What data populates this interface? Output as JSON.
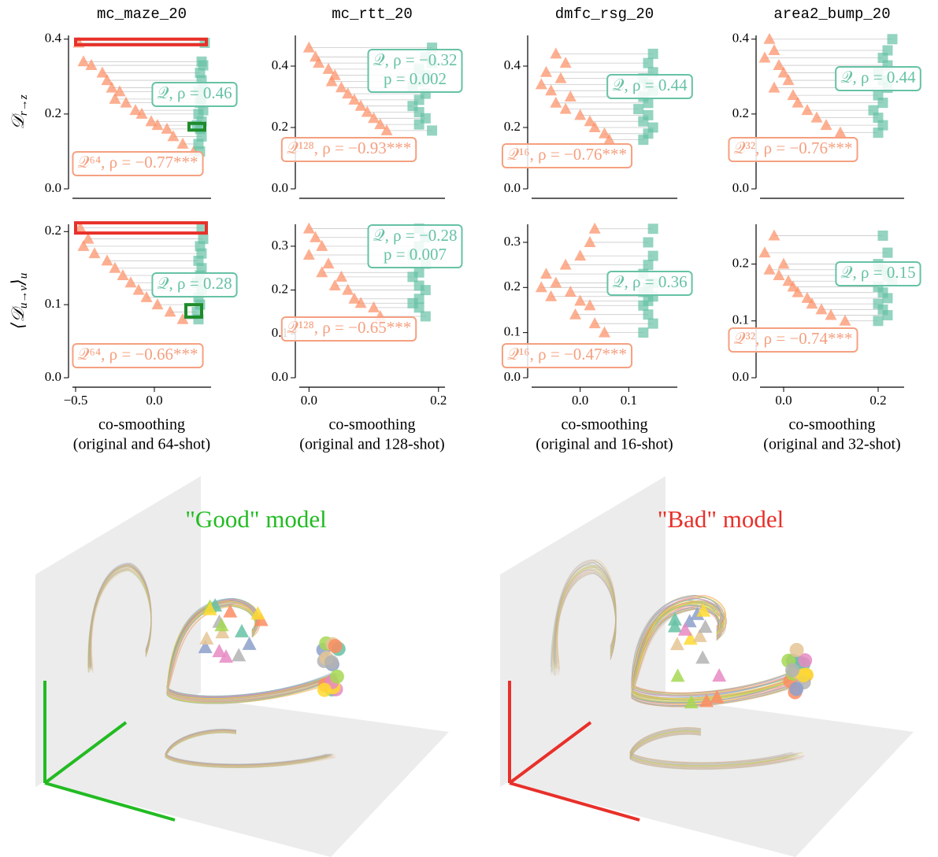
{
  "chart_data": [
    {
      "type": "scatter",
      "title": "mc_maze_20",
      "ylabel": [
        {
          "text": "𝒟"
        },
        {
          "text": "r→z",
          "sub": true
        }
      ],
      "xlim": [
        -0.52,
        0.36
      ],
      "ylim": [
        0,
        0.41
      ],
      "yticks": [
        {
          "value": 0,
          "label": "0.0"
        },
        0.2,
        0.4
      ],
      "series": [
        {
          "marker": "triangle",
          "color": "#fc8d62",
          "x": [
            -0.48,
            -0.45,
            -0.4,
            -0.33,
            -0.3,
            -0.27,
            -0.22,
            -0.25,
            -0.18,
            -0.12,
            -0.08,
            -0.02,
            0.02,
            0.08,
            0.12,
            0.18,
            0.25
          ],
          "values": [
            0.39,
            0.34,
            0.33,
            0.31,
            0.29,
            0.27,
            0.26,
            0.24,
            0.23,
            0.21,
            0.2,
            0.18,
            0.17,
            0.16,
            0.14,
            0.12,
            0.1
          ]
        },
        {
          "marker": "square",
          "color": "#66c2a5",
          "x": [
            0.32,
            0.3,
            0.31,
            0.29,
            0.3,
            0.31,
            0.28,
            0.3,
            0.29,
            0.31,
            0.28,
            0.3,
            0.27,
            0.29,
            0.3,
            0.28,
            0.29
          ],
          "values": [
            0.39,
            0.34,
            0.33,
            0.31,
            0.29,
            0.27,
            0.26,
            0.24,
            0.23,
            0.21,
            0.2,
            0.18,
            0.17,
            0.16,
            0.14,
            0.12,
            0.1
          ]
        }
      ],
      "highlights": [
        {
          "xlim": [
            -0.5,
            0.33
          ],
          "ylim": [
            0.385,
            0.4
          ],
          "color": "#e8302a"
        },
        {
          "xlim": [
            0.22,
            0.32
          ],
          "ylim": [
            0.157,
            0.175
          ],
          "color": "#1e8c2a"
        }
      ],
      "annotations": [
        {
          "lines": [
            "𝒬, ρ = 0.46"
          ],
          "color": "#66c2a5"
        },
        {
          "lines": [
            "𝒬⁶⁴, ρ = −0.77***"
          ],
          "color": "#f5a080"
        }
      ]
    },
    {
      "type": "scatter",
      "title": "mc_rtt_20",
      "xlim": [
        -0.015,
        0.21
      ],
      "ylim": [
        0,
        0.5
      ],
      "yticks": [
        {
          "value": 0,
          "label": "0.0"
        },
        0.2,
        0.4
      ],
      "series": [
        {
          "marker": "triangle",
          "color": "#fc8d62",
          "x": [
            0.0,
            0.01,
            0.015,
            0.03,
            0.04,
            0.035,
            0.05,
            0.06,
            0.07,
            0.08,
            0.09,
            0.1,
            0.11,
            0.12
          ],
          "values": [
            0.46,
            0.43,
            0.41,
            0.39,
            0.37,
            0.35,
            0.33,
            0.31,
            0.29,
            0.27,
            0.25,
            0.23,
            0.21,
            0.19
          ]
        },
        {
          "marker": "square",
          "color": "#66c2a5",
          "x": [
            0.19,
            0.18,
            0.19,
            0.17,
            0.18,
            0.17,
            0.16,
            0.18,
            0.17,
            0.16,
            0.17,
            0.18,
            0.17,
            0.19
          ],
          "values": [
            0.46,
            0.43,
            0.41,
            0.39,
            0.37,
            0.35,
            0.33,
            0.31,
            0.29,
            0.27,
            0.25,
            0.23,
            0.21,
            0.19
          ]
        }
      ],
      "annotations": [
        {
          "lines": [
            "𝒬, ρ = −0.32",
            "p = 0.002"
          ],
          "color": "#66c2a5"
        },
        {
          "lines": [
            "𝒬¹²⁸, ρ = −0.93***"
          ],
          "color": "#f5a080"
        }
      ]
    },
    {
      "type": "scatter",
      "title": "dmfc_rsg_20",
      "xlim": [
        -0.1,
        0.2
      ],
      "ylim": [
        0,
        0.5
      ],
      "yticks": [
        {
          "value": 0,
          "label": "0.0"
        },
        0.2,
        0.4
      ],
      "series": [
        {
          "marker": "triangle",
          "color": "#fc8d62",
          "x": [
            -0.05,
            -0.03,
            -0.07,
            -0.04,
            -0.08,
            -0.06,
            -0.02,
            -0.05,
            -0.03,
            0.0,
            0.02,
            0.03,
            0.05,
            0.06
          ],
          "values": [
            0.44,
            0.41,
            0.38,
            0.36,
            0.34,
            0.32,
            0.3,
            0.28,
            0.26,
            0.24,
            0.22,
            0.2,
            0.18,
            0.16
          ]
        },
        {
          "marker": "square",
          "color": "#66c2a5",
          "x": [
            0.15,
            0.14,
            0.15,
            0.13,
            0.14,
            0.15,
            0.13,
            0.14,
            0.12,
            0.14,
            0.13,
            0.15,
            0.14,
            0.13
          ],
          "values": [
            0.44,
            0.41,
            0.38,
            0.36,
            0.34,
            0.32,
            0.3,
            0.28,
            0.26,
            0.24,
            0.22,
            0.2,
            0.18,
            0.16
          ]
        }
      ],
      "annotations": [
        {
          "lines": [
            "𝒬, ρ = 0.44"
          ],
          "color": "#66c2a5"
        },
        {
          "lines": [
            "𝒬¹⁶, ρ = −0.76***"
          ],
          "color": "#f5a080"
        }
      ]
    },
    {
      "type": "scatter",
      "title": "area2_bump_20",
      "xlim": [
        -0.05,
        0.255
      ],
      "ylim": [
        0,
        0.41
      ],
      "yticks": [
        {
          "value": 0,
          "label": "0.0"
        },
        0.2,
        0.4
      ],
      "series": [
        {
          "marker": "triangle",
          "color": "#fc8d62",
          "x": [
            -0.03,
            -0.02,
            -0.04,
            -0.01,
            0.0,
            0.01,
            -0.02,
            0.02,
            0.03,
            0.05,
            0.07,
            0.09,
            0.12
          ],
          "values": [
            0.4,
            0.37,
            0.35,
            0.33,
            0.31,
            0.29,
            0.27,
            0.25,
            0.23,
            0.21,
            0.19,
            0.17,
            0.15
          ]
        },
        {
          "marker": "square",
          "color": "#66c2a5",
          "x": [
            0.23,
            0.22,
            0.21,
            0.22,
            0.2,
            0.21,
            0.22,
            0.2,
            0.21,
            0.19,
            0.2,
            0.21,
            0.2
          ],
          "values": [
            0.4,
            0.37,
            0.35,
            0.33,
            0.31,
            0.29,
            0.27,
            0.25,
            0.23,
            0.21,
            0.19,
            0.17,
            0.15
          ]
        }
      ],
      "annotations": [
        {
          "lines": [
            "𝒬, ρ = 0.44"
          ],
          "color": "#66c2a5"
        },
        {
          "lines": [
            "𝒬³², ρ = −0.76***"
          ],
          "color": "#f5a080"
        }
      ]
    },
    {
      "type": "scatter",
      "ylabel": [
        {
          "text": "⟨𝒟"
        },
        {
          "text": "u→v",
          "sub": true
        },
        {
          "text": "⟩"
        },
        {
          "text": "u",
          "sub": true
        }
      ],
      "xlabel": [
        "co-smoothing",
        "(original and 64-shot)"
      ],
      "xlim": [
        -0.52,
        0.36
      ],
      "ylim": [
        0,
        0.21
      ],
      "xticks": [
        {
          "value": -0.5,
          "label": "−0.5"
        },
        {
          "value": 0,
          "label": "0.0"
        }
      ],
      "yticks": [
        {
          "value": 0,
          "label": "0.0"
        },
        0.1,
        0.2
      ],
      "series": [
        {
          "marker": "triangle",
          "color": "#fc8d62",
          "x": [
            -0.47,
            -0.42,
            -0.45,
            -0.38,
            -0.3,
            -0.25,
            -0.2,
            -0.15,
            -0.1,
            -0.05,
            0.02,
            0.1,
            0.18
          ],
          "values": [
            0.205,
            0.19,
            0.18,
            0.17,
            0.16,
            0.15,
            0.14,
            0.13,
            0.12,
            0.11,
            0.1,
            0.09,
            0.08
          ]
        },
        {
          "marker": "square",
          "color": "#66c2a5",
          "x": [
            0.3,
            0.31,
            0.29,
            0.3,
            0.28,
            0.3,
            0.29,
            0.27,
            0.3,
            0.28,
            0.29,
            0.27,
            0.28
          ],
          "values": [
            0.205,
            0.19,
            0.18,
            0.17,
            0.16,
            0.15,
            0.14,
            0.13,
            0.12,
            0.11,
            0.1,
            0.09,
            0.08
          ]
        }
      ],
      "highlights": [
        {
          "xlim": [
            -0.5,
            0.33
          ],
          "ylim": [
            0.198,
            0.212
          ],
          "color": "#e8302a"
        },
        {
          "xlim": [
            0.2,
            0.3
          ],
          "ylim": [
            0.083,
            0.1
          ],
          "color": "#1e8c2a"
        }
      ],
      "annotations": [
        {
          "lines": [
            "𝒬, ρ = 0.28"
          ],
          "color": "#66c2a5"
        },
        {
          "lines": [
            "𝒬⁶⁴, ρ = −0.66***"
          ],
          "color": "#f5a080"
        }
      ]
    },
    {
      "type": "scatter",
      "xlabel": [
        "co-smoothing",
        "(original and 128-shot)"
      ],
      "xlim": [
        -0.015,
        0.21
      ],
      "ylim": [
        0,
        0.35
      ],
      "xticks": [
        {
          "value": 0,
          "label": "0.0"
        },
        0.2
      ],
      "yticks": [
        {
          "value": 0,
          "label": "0.0"
        },
        0.1,
        0.2,
        0.3
      ],
      "series": [
        {
          "marker": "triangle",
          "color": "#fc8d62",
          "x": [
            0.0,
            0.01,
            0.02,
            0.0,
            0.03,
            0.02,
            0.05,
            0.04,
            0.06,
            0.07,
            0.08,
            0.1,
            0.11
          ],
          "values": [
            0.34,
            0.32,
            0.3,
            0.28,
            0.26,
            0.24,
            0.23,
            0.21,
            0.2,
            0.18,
            0.17,
            0.16,
            0.14
          ]
        },
        {
          "marker": "square",
          "color": "#66c2a5",
          "x": [
            0.17,
            0.18,
            0.17,
            0.16,
            0.18,
            0.17,
            0.16,
            0.17,
            0.18,
            0.17,
            0.16,
            0.17,
            0.18
          ],
          "values": [
            0.34,
            0.32,
            0.3,
            0.28,
            0.26,
            0.24,
            0.23,
            0.21,
            0.2,
            0.18,
            0.17,
            0.16,
            0.14
          ]
        }
      ],
      "annotations": [
        {
          "lines": [
            "𝒬, ρ = −0.28",
            "p = 0.007"
          ],
          "color": "#66c2a5"
        },
        {
          "lines": [
            "𝒬¹²⁸, ρ = −0.65***"
          ],
          "color": "#f5a080"
        }
      ]
    },
    {
      "type": "scatter",
      "xlabel": [
        "co-smoothing",
        "(original and 16-shot)"
      ],
      "xlim": [
        -0.1,
        0.2
      ],
      "ylim": [
        0,
        0.34
      ],
      "xticks": [
        {
          "value": 0,
          "label": "0.0"
        },
        0.1
      ],
      "yticks": [
        {
          "value": 0,
          "label": "0.0"
        },
        0.1,
        0.2,
        0.3
      ],
      "series": [
        {
          "marker": "triangle",
          "color": "#fc8d62",
          "x": [
            0.03,
            0.02,
            0.0,
            -0.03,
            -0.07,
            -0.05,
            -0.08,
            -0.02,
            -0.06,
            0.0,
            0.02,
            -0.01,
            0.03,
            0.05
          ],
          "values": [
            0.33,
            0.3,
            0.27,
            0.25,
            0.23,
            0.21,
            0.2,
            0.19,
            0.18,
            0.17,
            0.16,
            0.14,
            0.12,
            0.1
          ]
        },
        {
          "marker": "square",
          "color": "#66c2a5",
          "x": [
            0.15,
            0.14,
            0.15,
            0.14,
            0.13,
            0.15,
            0.14,
            0.13,
            0.15,
            0.14,
            0.13,
            0.14,
            0.15,
            0.13
          ],
          "values": [
            0.33,
            0.3,
            0.27,
            0.25,
            0.23,
            0.21,
            0.2,
            0.19,
            0.18,
            0.17,
            0.16,
            0.14,
            0.12,
            0.1
          ]
        }
      ],
      "annotations": [
        {
          "lines": [
            "𝒬, ρ = 0.36"
          ],
          "color": "#66c2a5"
        },
        {
          "lines": [
            "𝒬¹⁶, ρ = −0.47***"
          ],
          "color": "#f5a080"
        }
      ]
    },
    {
      "type": "scatter",
      "xlabel": [
        "co-smoothing",
        "(original and 32-shot)"
      ],
      "xlim": [
        -0.05,
        0.255
      ],
      "ylim": [
        0,
        0.27
      ],
      "xticks": [
        {
          "value": 0,
          "label": "0.0"
        },
        0.2
      ],
      "yticks": [
        {
          "value": 0,
          "label": "0.0"
        },
        0.1,
        0.2
      ],
      "series": [
        {
          "marker": "triangle",
          "color": "#fc8d62",
          "x": [
            -0.02,
            -0.04,
            0.0,
            -0.03,
            -0.01,
            0.01,
            0.02,
            0.03,
            0.05,
            0.06,
            0.08,
            0.1,
            0.13
          ],
          "values": [
            0.25,
            0.22,
            0.2,
            0.19,
            0.18,
            0.17,
            0.16,
            0.15,
            0.14,
            0.13,
            0.12,
            0.11,
            0.1
          ]
        },
        {
          "marker": "square",
          "color": "#66c2a5",
          "x": [
            0.21,
            0.22,
            0.2,
            0.21,
            0.22,
            0.23,
            0.2,
            0.21,
            0.22,
            0.2,
            0.21,
            0.22,
            0.2
          ],
          "values": [
            0.25,
            0.22,
            0.2,
            0.19,
            0.18,
            0.17,
            0.16,
            0.15,
            0.14,
            0.13,
            0.12,
            0.11,
            0.1
          ]
        }
      ],
      "annotations": [
        {
          "lines": [
            "𝒬, ρ = 0.15"
          ],
          "color": "#66c2a5"
        },
        {
          "lines": [
            "𝒬³², ρ = −0.74***"
          ],
          "color": "#f5a080"
        }
      ]
    }
  ],
  "illustrations": [
    {
      "title": "\"Good\" model",
      "color": "#22bb22"
    },
    {
      "title": "\"Bad\" model",
      "color": "#e8302a"
    }
  ]
}
